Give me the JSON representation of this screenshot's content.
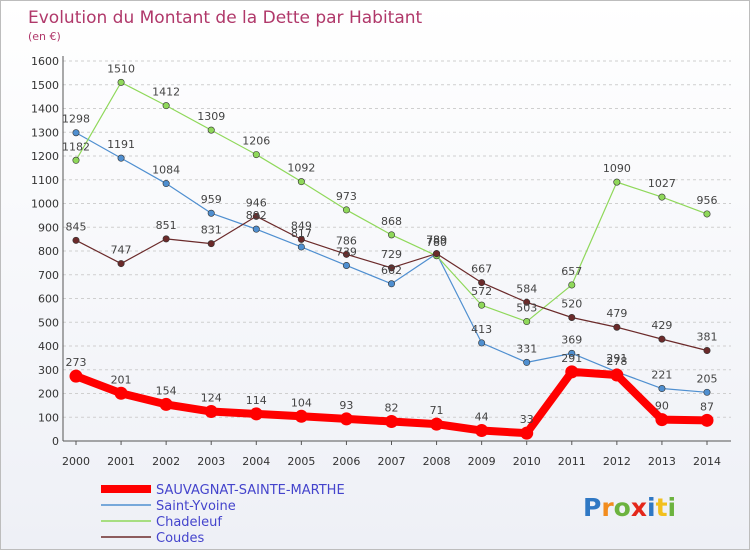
{
  "chart_data": {
    "type": "line",
    "title": "Evolution du Montant de la Dette par Habitant",
    "subtitle": "(en €)",
    "x": [
      "2000",
      "2001",
      "2002",
      "2003",
      "2004",
      "2005",
      "2006",
      "2007",
      "2008",
      "2009",
      "2010",
      "2011",
      "2012",
      "2013",
      "2014"
    ],
    "ylim": [
      0,
      1600
    ],
    "yticks": [
      0,
      100,
      200,
      300,
      400,
      500,
      600,
      700,
      800,
      900,
      1000,
      1100,
      1200,
      1300,
      1400,
      1500,
      1600
    ],
    "grid": "horizontal dashed",
    "legend_position": "bottom-left",
    "series": [
      {
        "name": "SAUVAGNAT-SAINTE-MARTHE",
        "color": "#ff0000",
        "values": [
          273,
          201,
          154,
          124,
          114,
          104,
          93,
          82,
          71,
          44,
          33,
          291,
          278,
          90,
          87
        ]
      },
      {
        "name": "Saint-Yvoine",
        "color": "#4f8fd0",
        "values": [
          1298,
          1191,
          1084,
          959,
          892,
          817,
          739,
          662,
          789,
          413,
          331,
          369,
          291,
          221,
          205
        ]
      },
      {
        "name": "Chadeleuf",
        "color": "#8fd85a",
        "values": [
          1182,
          1510,
          1412,
          1309,
          1206,
          1092,
          973,
          868,
          780,
          572,
          503,
          657,
          1090,
          1027,
          956
        ]
      },
      {
        "name": "Coudes",
        "color": "#6b2a2a",
        "values": [
          845,
          747,
          851,
          831,
          946,
          849,
          786,
          729,
          789,
          667,
          584,
          520,
          479,
          429,
          381
        ]
      }
    ]
  },
  "logo": {
    "letters": [
      "P",
      "r",
      "o",
      "x",
      "i",
      "t",
      "i"
    ]
  }
}
